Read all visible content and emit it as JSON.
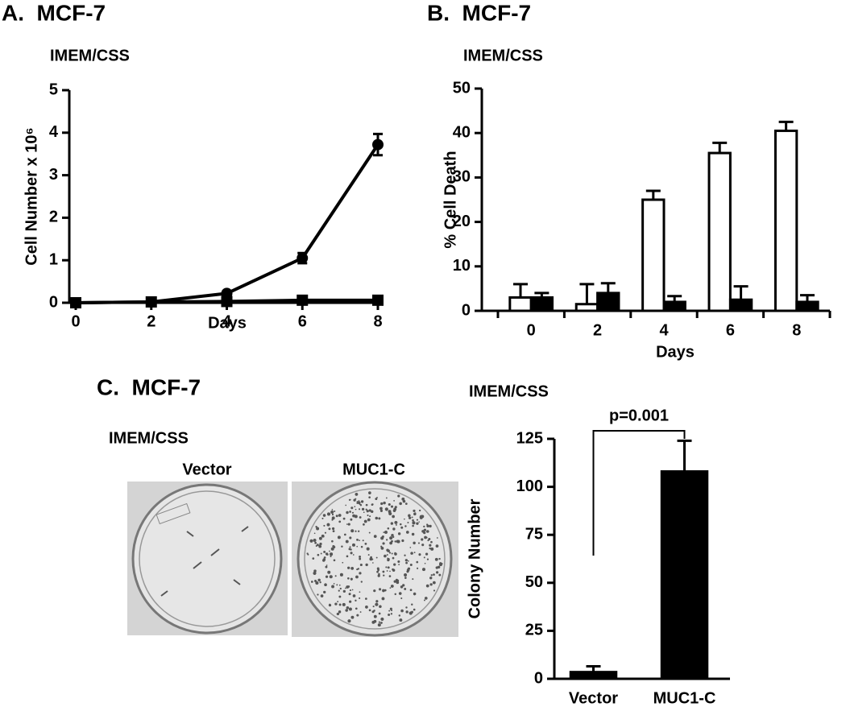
{
  "chart_data": [
    {
      "type": "line",
      "title": "A.  MCF-7",
      "subtitle": "IMEM/CSS",
      "x_label": "Days",
      "y_label": "Cell Number x 10⁶",
      "x": [
        0,
        2,
        4,
        6,
        8
      ],
      "xlim": [
        0,
        8
      ],
      "xticks": [
        0,
        2,
        4,
        6,
        8
      ],
      "ylim": [
        0,
        5
      ],
      "yticks": [
        0,
        1,
        2,
        3,
        4,
        5
      ],
      "series": [
        {
          "marker": "circle",
          "color": "#000000",
          "values": [
            0,
            0.02,
            0.22,
            1.05,
            3.72
          ],
          "errors": [
            0.01,
            0.03,
            0.03,
            0.12,
            0.25
          ]
        },
        {
          "marker": "square",
          "color": "#000000",
          "values": [
            0,
            0.02,
            0.03,
            0.06,
            0.06
          ],
          "errors": [
            0.01,
            0.01,
            0.01,
            0.02,
            0.02
          ]
        }
      ]
    },
    {
      "type": "bar",
      "title": "B.  MCF-7",
      "subtitle": "IMEM/CSS",
      "x_label": "Days",
      "y_label": "% Cell Death",
      "categories": [
        "0",
        "2",
        "4",
        "6",
        "8"
      ],
      "ylim": [
        0,
        50
      ],
      "yticks": [
        0,
        10,
        20,
        30,
        40,
        50
      ],
      "series": [
        {
          "color": "#ffffff",
          "values": [
            3,
            1.5,
            25,
            35.5,
            40.5
          ],
          "errors": [
            3,
            4.5,
            2,
            2.3,
            2
          ]
        },
        {
          "color": "#000000",
          "values": [
            3,
            4,
            2,
            2.5,
            2
          ],
          "errors": [
            1,
            2.2,
            1.3,
            3,
            1.5
          ]
        }
      ]
    },
    {
      "type": "bar",
      "subtitle": "IMEM/CSS",
      "y_label": "Colony Number",
      "annotation": "p=0.001",
      "categories": [
        "Vector",
        "MUC1-C"
      ],
      "ylim": [
        0,
        125
      ],
      "yticks": [
        0,
        25,
        50,
        75,
        100,
        125
      ],
      "series": [
        {
          "color": "#000000",
          "values": [
            3.5,
            108
          ],
          "errors": [
            3,
            16
          ]
        }
      ]
    }
  ],
  "panel_c": {
    "title": "C.  MCF-7",
    "subtitle": "IMEM/CSS",
    "images": [
      {
        "label": "Vector"
      },
      {
        "label": "MUC1-C"
      }
    ]
  }
}
